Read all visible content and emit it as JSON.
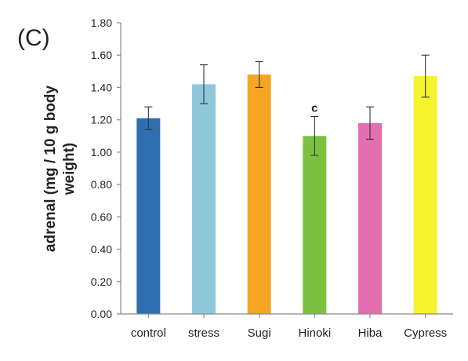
{
  "panel_label": "(C)",
  "chart_data": {
    "type": "bar",
    "categories": [
      "control",
      "stress",
      "Sugi",
      "Hinoki",
      "Hiba",
      "Cypress"
    ],
    "values": [
      1.21,
      1.42,
      1.48,
      1.1,
      1.18,
      1.47
    ],
    "errors": [
      0.07,
      0.12,
      0.08,
      0.12,
      0.1,
      0.13
    ],
    "colors": [
      "#2f6fb0",
      "#8fc8dc",
      "#f5a623",
      "#7cc242",
      "#e46fb0",
      "#f5f22e"
    ],
    "annotations": [
      "",
      "",
      "",
      "c",
      "",
      ""
    ],
    "ylabel_line1": "adrenal (mg / 10 g body",
    "ylabel_line2": "weight)",
    "ylim": [
      0,
      1.8
    ],
    "yticks": [
      "0.00",
      "0.20",
      "0.40",
      "0.60",
      "0.80",
      "1.00",
      "1.20",
      "1.40",
      "1.60",
      "1.80"
    ],
    "grid": false
  }
}
